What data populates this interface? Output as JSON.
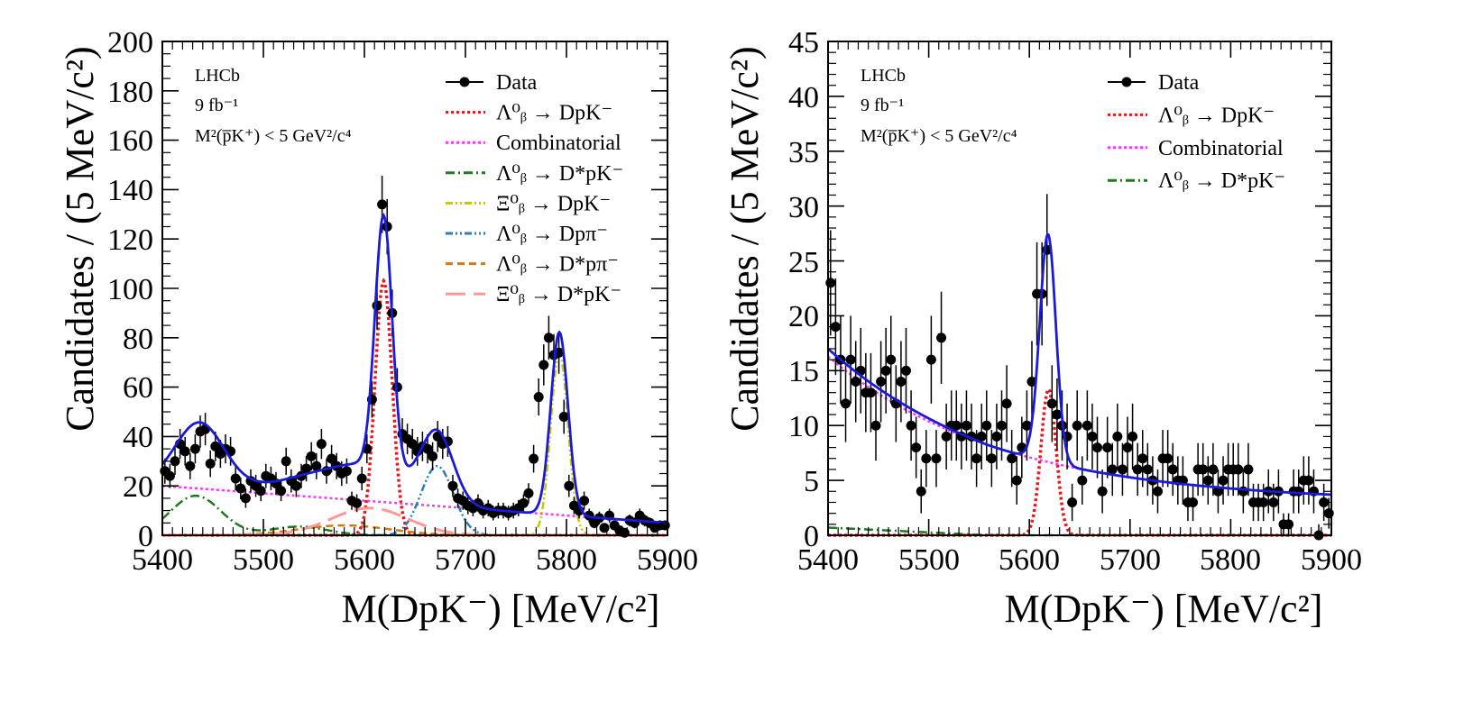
{
  "chart_data": [
    {
      "type": "scatter",
      "title": "",
      "xlabel": "M(DpK⁻) [MeV/c²]",
      "ylabel": "Candidates / (5 MeV/c²)",
      "xlim": [
        5400,
        5900
      ],
      "ylim": [
        0,
        200
      ],
      "x_ticks": [
        "5400",
        "5500",
        "5600",
        "5700",
        "5800",
        "5900"
      ],
      "y_ticks": [
        "0",
        "20",
        "40",
        "60",
        "80",
        "100",
        "120",
        "140",
        "160",
        "180",
        "200"
      ],
      "info": [
        "LHCb",
        "9 fb⁻¹",
        "M²(p̅K⁺) < 5 GeV²/c⁴"
      ],
      "legend": [
        {
          "label": "Data",
          "style": "points",
          "color": "#000000"
        },
        {
          "label": "Λ⁰ᵦ → DpK⁻",
          "style": "dotted",
          "color": "#e8141e"
        },
        {
          "label": "Combinatorial",
          "style": "dotted",
          "color": "#ff33ff"
        },
        {
          "label": "Λ⁰ᵦ → D*pK⁻",
          "style": "dashdot",
          "color": "#1e7a1e"
        },
        {
          "label": "Ξ⁰ᵦ → DpK⁻",
          "style": "dashdotdot",
          "color": "#c8c800"
        },
        {
          "label": "Λ⁰ᵦ → Dpπ⁻",
          "style": "dashdotdot",
          "color": "#2a7fb0"
        },
        {
          "label": "Λ⁰ᵦ → D*pπ⁻",
          "style": "dashed",
          "color": "#d07a10"
        },
        {
          "label": "Ξ⁰ᵦ → D*pK⁻",
          "style": "longdash",
          "color": "#ff9999"
        }
      ],
      "data_points": {
        "x": [
          5402.5,
          5407.5,
          5412.5,
          5417.5,
          5422.5,
          5427.5,
          5432.5,
          5437.5,
          5442.5,
          5447.5,
          5452.5,
          5457.5,
          5462.5,
          5467.5,
          5472.5,
          5477.5,
          5482.5,
          5487.5,
          5492.5,
          5497.5,
          5502.5,
          5507.5,
          5512.5,
          5517.5,
          5522.5,
          5527.5,
          5532.5,
          5537.5,
          5542.5,
          5547.5,
          5552.5,
          5557.5,
          5562.5,
          5567.5,
          5572.5,
          5577.5,
          5582.5,
          5587.5,
          5592.5,
          5597.5,
          5602.5,
          5607.5,
          5612.5,
          5617.5,
          5622.5,
          5627.5,
          5632.5,
          5637.5,
          5642.5,
          5647.5,
          5652.5,
          5657.5,
          5662.5,
          5667.5,
          5672.5,
          5677.5,
          5682.5,
          5687.5,
          5692.5,
          5697.5,
          5702.5,
          5707.5,
          5712.5,
          5717.5,
          5722.5,
          5727.5,
          5732.5,
          5737.5,
          5742.5,
          5747.5,
          5752.5,
          5757.5,
          5762.5,
          5767.5,
          5772.5,
          5777.5,
          5782.5,
          5787.5,
          5792.5,
          5797.5,
          5802.5,
          5807.5,
          5812.5,
          5817.5,
          5822.5,
          5827.5,
          5832.5,
          5837.5,
          5842.5,
          5847.5,
          5852.5,
          5857.5,
          5862.5,
          5867.5,
          5872.5,
          5877.5,
          5882.5,
          5887.5,
          5892.5,
          5897.5
        ],
        "y": [
          26,
          24,
          30,
          37,
          34,
          28,
          35,
          42,
          43,
          29,
          36,
          33,
          35,
          34,
          23,
          19,
          15,
          22,
          20,
          18,
          24,
          23,
          21,
          18,
          30,
          22,
          20,
          24,
          27,
          32,
          28,
          37,
          26,
          31,
          28,
          25,
          26,
          14,
          13,
          23,
          35,
          55,
          93,
          134,
          125,
          90,
          60,
          41,
          39,
          37,
          34,
          36,
          35,
          32,
          40,
          37,
          38,
          20,
          15,
          14,
          12,
          11,
          13,
          10,
          11,
          9,
          10,
          10,
          9,
          10,
          11,
          13,
          17,
          31,
          56,
          69,
          80,
          73,
          74,
          48,
          20,
          12,
          10,
          14,
          8,
          5,
          7,
          3,
          8,
          4,
          2,
          1,
          6,
          5,
          8,
          6,
          5,
          3,
          4,
          4
        ],
        "err": [
          5.1,
          4.9,
          5.5,
          6.1,
          5.8,
          5.3,
          5.9,
          6.5,
          6.6,
          5.4,
          6,
          5.7,
          5.9,
          5.8,
          4.8,
          4.4,
          3.9,
          4.7,
          4.5,
          4.2,
          4.9,
          4.8,
          4.6,
          4.2,
          5.5,
          4.7,
          4.5,
          4.9,
          5.2,
          5.7,
          5.3,
          6.1,
          5.1,
          5.6,
          5.3,
          5,
          5.1,
          3.7,
          3.6,
          4.8,
          5.9,
          7.4,
          9.6,
          11.6,
          11.2,
          9.5,
          7.7,
          6.4,
          6.2,
          6.1,
          5.8,
          6,
          5.9,
          5.7,
          6.3,
          6.1,
          6.2,
          4.5,
          3.9,
          3.7,
          3.5,
          3.3,
          3.6,
          3.2,
          3.3,
          3,
          3.2,
          3.2,
          3,
          3.2,
          3.3,
          3.6,
          4.1,
          5.6,
          7.5,
          8.3,
          8.9,
          8.5,
          8.6,
          6.9,
          4.5,
          3.5,
          3.2,
          3.7,
          2.8,
          2.2,
          2.6,
          1.7,
          2.8,
          2,
          1.4,
          1,
          2.4,
          2.2,
          2.8,
          2.4,
          2.2,
          1.7,
          2,
          2
        ]
      }
    },
    {
      "type": "scatter",
      "title": "",
      "xlabel": "M(DpK⁻) [MeV/c²]",
      "ylabel": "Candidates / (5 MeV/c²)",
      "xlim": [
        5400,
        5900
      ],
      "ylim": [
        0,
        45
      ],
      "x_ticks": [
        "5400",
        "5500",
        "5600",
        "5700",
        "5800",
        "5900"
      ],
      "y_ticks": [
        "0",
        "5",
        "10",
        "15",
        "20",
        "25",
        "30",
        "35",
        "40",
        "45"
      ],
      "info": [
        "LHCb",
        "9 fb⁻¹",
        "M²(p̅K⁺) < 5 GeV²/c⁴"
      ],
      "legend": [
        {
          "label": "Data",
          "style": "points",
          "color": "#000000"
        },
        {
          "label": "Λ⁰ᵦ → DpK⁻",
          "style": "dotted",
          "color": "#e8141e"
        },
        {
          "label": "Combinatorial",
          "style": "dotted",
          "color": "#ff33ff"
        },
        {
          "label": "Λ⁰ᵦ → D*pK⁻",
          "style": "dashdot",
          "color": "#1e7a1e"
        }
      ],
      "data_points": {
        "x": [
          5402.5,
          5407.5,
          5412.5,
          5417.5,
          5422.5,
          5427.5,
          5432.5,
          5437.5,
          5442.5,
          5447.5,
          5452.5,
          5457.5,
          5462.5,
          5467.5,
          5472.5,
          5477.5,
          5482.5,
          5487.5,
          5492.5,
          5497.5,
          5502.5,
          5507.5,
          5512.5,
          5517.5,
          5522.5,
          5527.5,
          5532.5,
          5537.5,
          5542.5,
          5547.5,
          5552.5,
          5557.5,
          5562.5,
          5567.5,
          5572.5,
          5577.5,
          5582.5,
          5587.5,
          5592.5,
          5597.5,
          5602.5,
          5607.5,
          5612.5,
          5617.5,
          5622.5,
          5627.5,
          5632.5,
          5637.5,
          5642.5,
          5647.5,
          5652.5,
          5657.5,
          5662.5,
          5667.5,
          5672.5,
          5677.5,
          5682.5,
          5687.5,
          5692.5,
          5697.5,
          5702.5,
          5707.5,
          5712.5,
          5717.5,
          5722.5,
          5727.5,
          5732.5,
          5737.5,
          5742.5,
          5747.5,
          5752.5,
          5757.5,
          5762.5,
          5767.5,
          5772.5,
          5777.5,
          5782.5,
          5787.5,
          5792.5,
          5797.5,
          5802.5,
          5807.5,
          5812.5,
          5817.5,
          5822.5,
          5827.5,
          5832.5,
          5837.5,
          5842.5,
          5847.5,
          5852.5,
          5857.5,
          5862.5,
          5867.5,
          5872.5,
          5877.5,
          5882.5,
          5887.5,
          5892.5,
          5897.5
        ],
        "y": [
          23,
          19,
          16,
          12,
          16,
          14,
          15,
          13,
          13,
          10,
          14,
          15,
          16,
          12,
          14,
          15,
          10,
          8,
          4,
          7,
          16,
          7,
          18,
          9,
          10,
          10,
          9,
          10,
          9,
          7,
          9,
          10,
          7,
          9,
          10,
          12,
          7,
          5,
          8,
          10,
          14,
          22,
          22,
          26,
          12,
          11,
          10,
          9,
          3,
          10,
          5,
          10,
          9,
          8,
          4,
          8,
          6,
          9,
          6,
          8,
          9,
          6,
          7,
          6,
          5,
          4,
          7,
          7,
          6,
          5,
          5,
          3,
          3,
          6,
          6,
          5,
          6,
          4,
          5,
          6,
          6,
          6,
          4,
          6,
          3,
          3,
          3,
          4,
          3,
          4,
          1,
          1,
          4,
          4,
          5,
          5,
          4,
          0,
          3,
          2
        ],
        "err": [
          4.8,
          4.4,
          4,
          3.5,
          4,
          3.7,
          3.9,
          3.6,
          3.6,
          3.2,
          3.7,
          3.9,
          4,
          3.5,
          3.7,
          3.9,
          3.2,
          2.8,
          2,
          2.6,
          4,
          2.6,
          4.2,
          3,
          3.2,
          3.2,
          3,
          3.2,
          3,
          2.6,
          3,
          3.2,
          2.6,
          3,
          3.2,
          3.5,
          2.6,
          2.2,
          2.8,
          3.2,
          3.7,
          4.7,
          4.7,
          5.1,
          3.5,
          3.3,
          3.2,
          3,
          1.7,
          3.2,
          2.2,
          3.2,
          3,
          2.8,
          2,
          2.8,
          2.4,
          3,
          2.4,
          2.8,
          3,
          2.4,
          2.6,
          2.4,
          2.2,
          2,
          2.6,
          2.6,
          2.4,
          2.2,
          2.2,
          1.7,
          1.7,
          2.4,
          2.4,
          2.2,
          2.4,
          2,
          2.2,
          2.4,
          2.4,
          2.4,
          2,
          2.4,
          1.7,
          1.7,
          1.7,
          2,
          1.7,
          2,
          1,
          1,
          2,
          2,
          2.2,
          2.2,
          2,
          1,
          1.7,
          1.4
        ]
      }
    }
  ]
}
